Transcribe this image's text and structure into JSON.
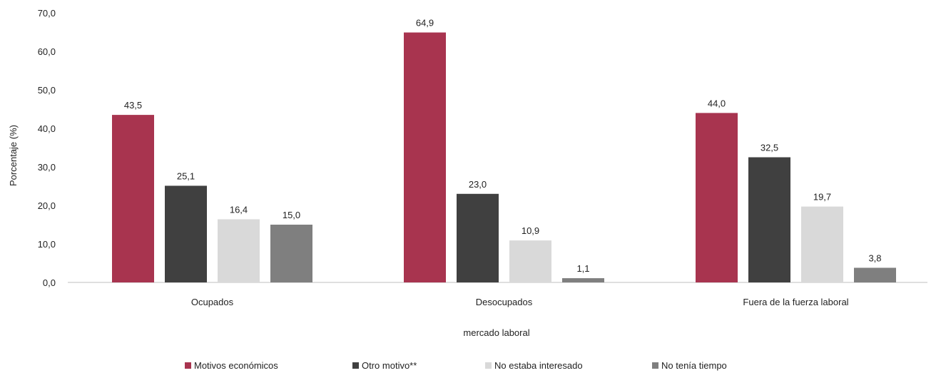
{
  "chart_data": {
    "type": "bar",
    "title": "",
    "xlabel": "mercado laboral",
    "ylabel": "Porcentaje (%)",
    "ylim": [
      0,
      70
    ],
    "yticks": [
      "0,0",
      "10,0",
      "20,0",
      "30,0",
      "40,0",
      "50,0",
      "60,0",
      "70,0"
    ],
    "categories": [
      "Ocupados",
      "Desocupados",
      "Fuera de la fuerza laboral"
    ],
    "series": [
      {
        "name": "Motivos económicos",
        "color": "#a8344f",
        "values": [
          43.5,
          64.9,
          44.0
        ],
        "labels": [
          "43,5",
          "64,9",
          "44,0"
        ]
      },
      {
        "name": "Otro motivo**",
        "color": "#404040",
        "values": [
          25.1,
          23.0,
          32.5
        ],
        "labels": [
          "25,1",
          "23,0",
          "32,5"
        ]
      },
      {
        "name": "No estaba interesado",
        "color": "#d9d9d9",
        "values": [
          16.4,
          10.9,
          19.7
        ],
        "labels": [
          "16,4",
          "10,9",
          "19,7"
        ]
      },
      {
        "name": "No tenía tiempo",
        "color": "#7f7f7f",
        "values": [
          15.0,
          1.1,
          3.8
        ],
        "labels": [
          "15,0",
          "1,1",
          "3,8"
        ]
      }
    ],
    "grid": false,
    "legend_position": "bottom"
  }
}
